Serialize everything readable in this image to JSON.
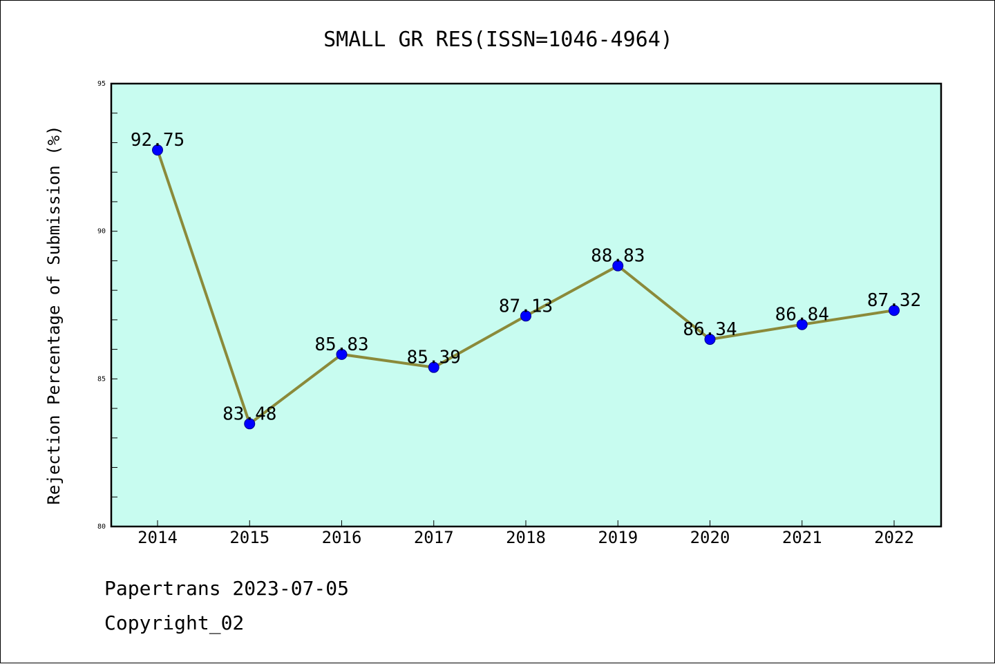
{
  "chart_data": {
    "type": "line",
    "title": "SMALL GR RES(ISSN=1046-4964)",
    "ylabel": "Rejection Percentage of Submission (%)",
    "xlabel": "",
    "categories": [
      "2014",
      "2015",
      "2016",
      "2017",
      "2018",
      "2019",
      "2020",
      "2021",
      "2022"
    ],
    "series": [
      {
        "values": [
          92.75,
          83.48,
          85.83,
          85.39,
          87.13,
          88.83,
          86.34,
          86.84,
          87.32
        ],
        "labels": [
          "92.75",
          "83.48",
          "85.83",
          "85.39",
          "87.13",
          "88.83",
          "86.34",
          "86.84",
          "87.32"
        ]
      }
    ],
    "ylim": [
      80,
      95
    ],
    "yticks": [
      80,
      85,
      90,
      95
    ],
    "yminor_step": 1,
    "grid": false,
    "legend": "none",
    "colors": {
      "plot_background": "#c8fcf0",
      "line": "#8b8a3a",
      "marker": "#0000ff",
      "marker_edge": "#00008b"
    }
  },
  "footer": {
    "line1": "Papertrans 2023-07-05",
    "line2": "Copyright_02"
  }
}
